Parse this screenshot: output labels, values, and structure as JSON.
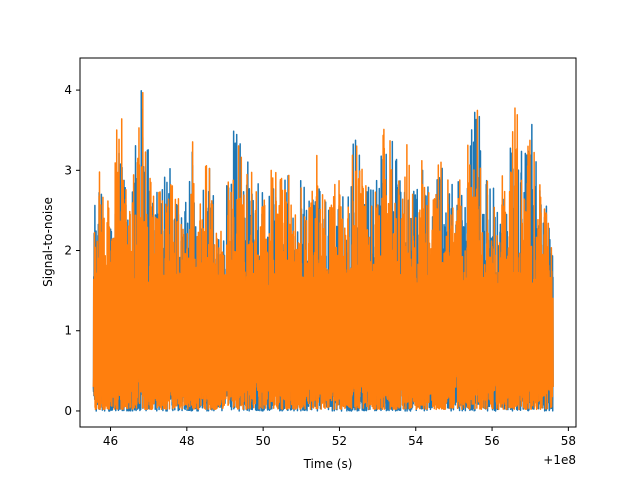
{
  "chart_data": {
    "type": "line",
    "xlabel": "Time (s)",
    "ylabel": "Signal-to-noise",
    "x_offset_label": "+1e8",
    "xlim": [
      45.2,
      58.2
    ],
    "ylim": [
      -0.2,
      4.4
    ],
    "x_ticks": [
      46,
      48,
      50,
      52,
      54,
      56,
      58
    ],
    "x_tick_labels": [
      "46",
      "48",
      "50",
      "52",
      "54",
      "56",
      "58"
    ],
    "y_ticks": [
      0,
      1,
      2,
      3,
      4
    ],
    "y_tick_labels": [
      "0",
      "1",
      "2",
      "3",
      "4"
    ],
    "grid": false,
    "legend": "none",
    "series": [
      {
        "color": "#1f77b4",
        "x_range": [
          45.55,
          57.6
        ],
        "points": 2400,
        "envelope_upper": [
          [
            45.55,
            2.6
          ],
          [
            45.7,
            3.0
          ],
          [
            45.9,
            2.6
          ],
          [
            46.1,
            3.2
          ],
          [
            46.25,
            3.95
          ],
          [
            46.4,
            3.1
          ],
          [
            46.55,
            2.6
          ],
          [
            46.7,
            3.7
          ],
          [
            46.85,
            4.2
          ],
          [
            47.0,
            3.2
          ],
          [
            47.2,
            2.8
          ],
          [
            47.4,
            2.9
          ],
          [
            47.6,
            3.05
          ],
          [
            47.8,
            2.6
          ],
          [
            48.0,
            2.9
          ],
          [
            48.2,
            3.5
          ],
          [
            48.4,
            3.0
          ],
          [
            48.6,
            3.1
          ],
          [
            48.8,
            2.7
          ],
          [
            49.0,
            2.6
          ],
          [
            49.2,
            3.5
          ],
          [
            49.4,
            3.4
          ],
          [
            49.6,
            3.1
          ],
          [
            49.8,
            2.9
          ],
          [
            50.0,
            2.7
          ],
          [
            50.2,
            3.3
          ],
          [
            50.4,
            2.8
          ],
          [
            50.6,
            3.5
          ],
          [
            50.8,
            2.5
          ],
          [
            51.0,
            2.9
          ],
          [
            51.2,
            2.6
          ],
          [
            51.4,
            3.3
          ],
          [
            51.6,
            2.7
          ],
          [
            51.8,
            2.8
          ],
          [
            52.0,
            2.9
          ],
          [
            52.2,
            2.5
          ],
          [
            52.4,
            3.6
          ],
          [
            52.6,
            3.2
          ],
          [
            52.8,
            2.8
          ],
          [
            53.0,
            3.0
          ],
          [
            53.2,
            3.7
          ],
          [
            53.4,
            3.55
          ],
          [
            53.6,
            2.9
          ],
          [
            53.8,
            3.4
          ],
          [
            54.0,
            2.7
          ],
          [
            54.2,
            3.6
          ],
          [
            54.4,
            2.6
          ],
          [
            54.6,
            3.2
          ],
          [
            54.8,
            2.9
          ],
          [
            55.0,
            2.8
          ],
          [
            55.2,
            2.9
          ],
          [
            55.4,
            3.4
          ],
          [
            55.6,
            4.05
          ],
          [
            55.8,
            2.9
          ],
          [
            56.0,
            2.8
          ],
          [
            56.2,
            3.0
          ],
          [
            56.4,
            2.8
          ],
          [
            56.6,
            4.05
          ],
          [
            56.8,
            3.1
          ],
          [
            57.0,
            3.7
          ],
          [
            57.2,
            3.4
          ],
          [
            57.35,
            2.8
          ],
          [
            57.5,
            2.3
          ],
          [
            57.6,
            2.0
          ]
        ],
        "envelope_lower": [
          0.0,
          0.5
        ]
      },
      {
        "color": "#ff7f0e",
        "x_range": [
          45.55,
          57.6
        ],
        "points": 2400,
        "envelope_upper": [
          [
            45.55,
            2.6
          ],
          [
            45.7,
            3.0
          ],
          [
            45.9,
            2.6
          ],
          [
            46.1,
            3.2
          ],
          [
            46.25,
            3.95
          ],
          [
            46.4,
            3.1
          ],
          [
            46.55,
            2.6
          ],
          [
            46.7,
            3.7
          ],
          [
            46.85,
            4.2
          ],
          [
            47.0,
            3.2
          ],
          [
            47.2,
            2.8
          ],
          [
            47.4,
            2.9
          ],
          [
            47.6,
            3.05
          ],
          [
            47.8,
            2.6
          ],
          [
            48.0,
            2.9
          ],
          [
            48.2,
            3.5
          ],
          [
            48.4,
            3.0
          ],
          [
            48.6,
            3.1
          ],
          [
            48.8,
            2.7
          ],
          [
            49.0,
            2.6
          ],
          [
            49.2,
            3.5
          ],
          [
            49.4,
            3.4
          ],
          [
            49.6,
            3.1
          ],
          [
            49.8,
            2.9
          ],
          [
            50.0,
            2.7
          ],
          [
            50.2,
            3.3
          ],
          [
            50.4,
            2.8
          ],
          [
            50.6,
            3.5
          ],
          [
            50.8,
            2.5
          ],
          [
            51.0,
            2.9
          ],
          [
            51.2,
            2.6
          ],
          [
            51.4,
            3.3
          ],
          [
            51.6,
            2.7
          ],
          [
            51.8,
            2.8
          ],
          [
            52.0,
            2.9
          ],
          [
            52.2,
            2.5
          ],
          [
            52.4,
            3.6
          ],
          [
            52.6,
            3.2
          ],
          [
            52.8,
            2.8
          ],
          [
            53.0,
            3.0
          ],
          [
            53.2,
            3.7
          ],
          [
            53.4,
            3.55
          ],
          [
            53.6,
            2.9
          ],
          [
            53.8,
            3.4
          ],
          [
            54.0,
            2.7
          ],
          [
            54.2,
            3.6
          ],
          [
            54.4,
            2.6
          ],
          [
            54.6,
            3.2
          ],
          [
            54.8,
            2.9
          ],
          [
            55.0,
            2.8
          ],
          [
            55.2,
            2.9
          ],
          [
            55.4,
            3.4
          ],
          [
            55.6,
            4.0
          ],
          [
            55.8,
            2.9
          ],
          [
            56.0,
            2.8
          ],
          [
            56.2,
            3.0
          ],
          [
            56.4,
            2.8
          ],
          [
            56.6,
            3.95
          ],
          [
            56.8,
            3.1
          ],
          [
            57.0,
            3.7
          ],
          [
            57.2,
            3.4
          ],
          [
            57.35,
            2.8
          ],
          [
            57.5,
            2.3
          ],
          [
            57.6,
            2.0
          ]
        ],
        "envelope_lower": [
          0.02,
          0.5
        ]
      }
    ]
  }
}
